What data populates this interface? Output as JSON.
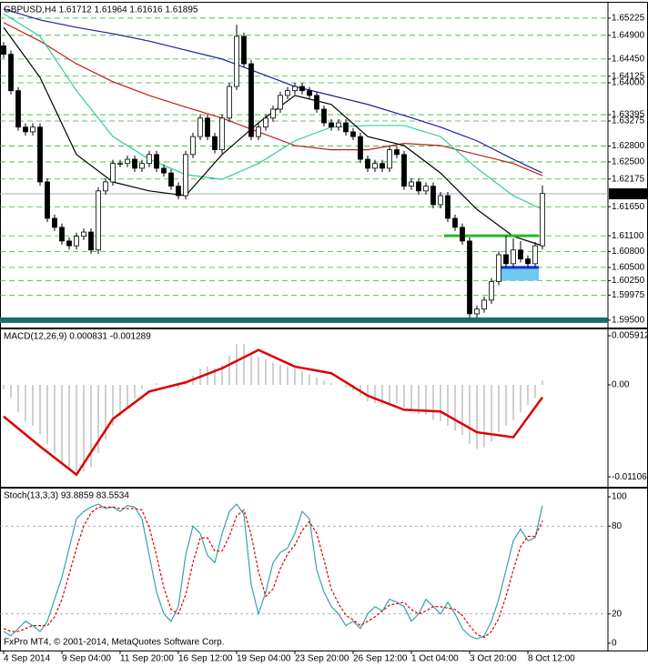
{
  "chart_data": [
    {
      "type": "candlestick",
      "title": "GBPUSD,H4  1.61712 1.61964 1.61616 1.61895",
      "xlim": [
        -0.5,
        83
      ],
      "ylim": [
        1.5936,
        1.655
      ],
      "yticks": [
        1.65225,
        {
          "value": 1.649,
          "label": "1.64900"
        },
        {
          "value": 1.6445,
          "label": "1.64450"
        },
        1.64125,
        {
          "value": 1.64,
          "label": "1.64000"
        },
        1.63395,
        1.63275,
        {
          "value": 1.628,
          "label": "1.62800"
        },
        {
          "value": 1.625,
          "label": "1.62500"
        },
        1.62175,
        {
          "value": 1.6165,
          "label": "1.61650"
        },
        {
          "value": 1.611,
          "label": "1.61100"
        },
        {
          "value": 1.608,
          "label": "1.60800"
        },
        {
          "value": 1.605,
          "label": "1.60500"
        },
        {
          "value": 1.6025,
          "label": "1.60250"
        },
        1.59975,
        {
          "value": 1.595,
          "label": "1.59500"
        }
      ],
      "grid": true,
      "grid_color": "#2db82d",
      "last_price": 1.61895,
      "candle_color": "#000000",
      "ohlc": [
        [
          1.647,
          1.6477,
          1.6447,
          1.6454
        ],
        [
          1.6454,
          1.6461,
          1.6378,
          1.6385
        ],
        [
          1.6385,
          1.6392,
          1.6309,
          1.6316
        ],
        [
          1.6316,
          1.6323,
          1.63,
          1.6307
        ],
        [
          1.6307,
          1.6323,
          1.63,
          1.6316
        ],
        [
          1.6316,
          1.6323,
          1.6205,
          1.6212
        ],
        [
          1.6212,
          1.6219,
          1.6136,
          1.6143
        ],
        [
          1.6143,
          1.615,
          1.6119,
          1.6126
        ],
        [
          1.6126,
          1.6133,
          1.6093,
          1.61
        ],
        [
          1.61,
          1.6107,
          1.6084,
          1.6091
        ],
        [
          1.6091,
          1.6116,
          1.6084,
          1.6109
        ],
        [
          1.6109,
          1.6124,
          1.6102,
          1.6117
        ],
        [
          1.6117,
          1.6124,
          1.6076,
          1.6083
        ],
        [
          1.6083,
          1.6202,
          1.6076,
          1.6195
        ],
        [
          1.6195,
          1.6219,
          1.6188,
          1.6212
        ],
        [
          1.6212,
          1.6254,
          1.6205,
          1.6247
        ],
        [
          1.6247,
          1.6254,
          1.624,
          1.6247
        ],
        [
          1.6247,
          1.6262,
          1.624,
          1.6255
        ],
        [
          1.6255,
          1.6262,
          1.6231,
          1.6238
        ],
        [
          1.6238,
          1.6254,
          1.6231,
          1.6247
        ],
        [
          1.6247,
          1.6271,
          1.624,
          1.6264
        ],
        [
          1.6264,
          1.6271,
          1.6231,
          1.6238
        ],
        [
          1.6238,
          1.6245,
          1.6222,
          1.6229
        ],
        [
          1.6229,
          1.6236,
          1.6197,
          1.6204
        ],
        [
          1.6204,
          1.6211,
          1.6179,
          1.6186
        ],
        [
          1.6186,
          1.6271,
          1.6179,
          1.6264
        ],
        [
          1.6264,
          1.6305,
          1.6257,
          1.6298
        ],
        [
          1.6298,
          1.634,
          1.6291,
          1.6333
        ],
        [
          1.6333,
          1.634,
          1.6291,
          1.6298
        ],
        [
          1.6298,
          1.6305,
          1.6266,
          1.6273
        ],
        [
          1.6273,
          1.634,
          1.6266,
          1.6333
        ],
        [
          1.6333,
          1.64,
          1.6326,
          1.6393
        ],
        [
          1.6393,
          1.651,
          1.6386,
          1.6488
        ],
        [
          1.6488,
          1.6495,
          1.6429,
          1.6436
        ],
        [
          1.6436,
          1.6443,
          1.6291,
          1.6298
        ],
        [
          1.6298,
          1.6323,
          1.6291,
          1.6316
        ],
        [
          1.6316,
          1.634,
          1.6309,
          1.6333
        ],
        [
          1.6333,
          1.6357,
          1.6326,
          1.635
        ],
        [
          1.635,
          1.6383,
          1.6343,
          1.6376
        ],
        [
          1.6376,
          1.6392,
          1.6369,
          1.6385
        ],
        [
          1.6385,
          1.64,
          1.6378,
          1.6393
        ],
        [
          1.6393,
          1.64,
          1.6378,
          1.6385
        ],
        [
          1.6385,
          1.6392,
          1.6369,
          1.6376
        ],
        [
          1.6376,
          1.6383,
          1.6343,
          1.635
        ],
        [
          1.635,
          1.6357,
          1.6317,
          1.6324
        ],
        [
          1.6324,
          1.6331,
          1.6309,
          1.6316
        ],
        [
          1.6316,
          1.6331,
          1.6309,
          1.6324
        ],
        [
          1.6324,
          1.6331,
          1.63,
          1.6307
        ],
        [
          1.6307,
          1.6314,
          1.6291,
          1.6298
        ],
        [
          1.6298,
          1.6305,
          1.6248,
          1.6255
        ],
        [
          1.6255,
          1.6262,
          1.6231,
          1.6238
        ],
        [
          1.6238,
          1.6254,
          1.6231,
          1.6247
        ],
        [
          1.6247,
          1.6254,
          1.6231,
          1.6238
        ],
        [
          1.6238,
          1.628,
          1.6231,
          1.6273
        ],
        [
          1.6273,
          1.628,
          1.6257,
          1.6264
        ],
        [
          1.6264,
          1.6271,
          1.6197,
          1.6204
        ],
        [
          1.6204,
          1.6219,
          1.6197,
          1.6212
        ],
        [
          1.6212,
          1.6219,
          1.6188,
          1.6195
        ],
        [
          1.6195,
          1.6211,
          1.6188,
          1.6204
        ],
        [
          1.6204,
          1.6211,
          1.6162,
          1.6169
        ],
        [
          1.6169,
          1.6193,
          1.6162,
          1.6186
        ],
        [
          1.6186,
          1.6193,
          1.6136,
          1.6143
        ],
        [
          1.6143,
          1.615,
          1.6119,
          1.6126
        ],
        [
          1.6126,
          1.6133,
          1.6093,
          1.61
        ],
        [
          1.61,
          1.6107,
          1.5955,
          1.5962
        ],
        [
          1.5962,
          1.5978,
          1.5955,
          1.5971
        ],
        [
          1.5971,
          1.5995,
          1.5964,
          1.5988
        ],
        [
          1.5988,
          1.603,
          1.5981,
          1.6023
        ],
        [
          1.6023,
          1.6081,
          1.6016,
          1.6074
        ],
        [
          1.6074,
          1.611,
          1.605,
          1.6057
        ],
        [
          1.6057,
          1.6105,
          1.605,
          1.6083
        ],
        [
          1.6083,
          1.61,
          1.6059,
          1.6066
        ],
        [
          1.6066,
          1.6073,
          1.605,
          1.6057
        ],
        [
          1.6057,
          1.6098,
          1.605,
          1.6091
        ],
        [
          1.6091,
          1.6205,
          1.6084,
          1.619
        ]
      ],
      "ma_x": [
        0,
        5,
        10,
        15,
        20,
        25,
        30,
        35,
        40,
        45,
        50,
        55,
        60,
        65,
        70,
        74
      ],
      "lines": [
        {
          "color": "#1f1f99",
          "values": [
            1.654,
            1.6519,
            1.6505,
            1.6493,
            1.6479,
            1.6462,
            1.6445,
            1.6419,
            1.6393,
            1.6376,
            1.6359,
            1.6338,
            1.6316,
            1.629,
            1.6255,
            1.6229
          ]
        },
        {
          "color": "#c0201a",
          "values": [
            1.6514,
            1.6479,
            1.6436,
            1.6402,
            1.6376,
            1.6354,
            1.6333,
            1.6307,
            1.6281,
            1.6273,
            1.6273,
            1.6285,
            1.6281,
            1.6264,
            1.6247,
            1.6224
          ]
        },
        {
          "color": "#33cc99",
          "values": [
            1.6531,
            1.6488,
            1.6385,
            1.6298,
            1.6255,
            1.6226,
            1.6217,
            1.6247,
            1.629,
            1.6316,
            1.6319,
            1.6319,
            1.6298,
            1.6238,
            1.6186,
            1.616
          ]
        },
        {
          "color": "#000000",
          "values": [
            1.6505,
            1.641,
            1.6264,
            1.6212,
            1.6195,
            1.6186,
            1.6264,
            1.6324,
            1.6376,
            1.6359,
            1.6298,
            1.6281,
            1.6229,
            1.616,
            1.6109,
            1.6091
          ]
        }
      ],
      "support_line": {
        "value": 1.611,
        "x": [
          60.5,
          73.5
        ],
        "color": "#22bb22"
      },
      "zone": {
        "top": 1.605,
        "bottom": 1.6025,
        "x": [
          68,
          73.5
        ],
        "color": "#6fc8f0",
        "edge_color": "#1133cc"
      },
      "bottom_line": {
        "value": 1.595,
        "color": "#1a6b6b"
      }
    },
    {
      "type": "macd",
      "title": "MACD(12,26,9) 0.000831 -0.001289",
      "xlim": [
        -0.5,
        83
      ],
      "ylim": [
        -0.01226,
        0.00657
      ],
      "yticks": [
        0.005912,
        {
          "value": 0,
          "label": "0.00"
        },
        -0.011069
      ],
      "histogram_color": "#a0a0a0",
      "histogram": [
        -0.0005,
        -0.0016,
        -0.0033,
        -0.0044,
        -0.0049,
        -0.006,
        -0.0071,
        -0.0082,
        -0.0093,
        -0.0101,
        -0.0104,
        -0.0104,
        -0.0099,
        -0.0082,
        -0.0066,
        -0.0049,
        -0.0038,
        -0.0027,
        -0.0016,
        -0.0005,
        0,
        0.0002,
        0,
        -0.0002,
        -0.0004,
        0.0002,
        0.0011,
        0.002,
        0.0022,
        0.002,
        0.0024,
        0.0035,
        0.0049,
        0.0049,
        0.0038,
        0.0033,
        0.0031,
        0.0027,
        0.0024,
        0.0022,
        0.002,
        0.0016,
        0.0013,
        0.0009,
        0.0005,
        0.0002,
        0,
        -0.0003,
        -0.0007,
        -0.0013,
        -0.002,
        -0.0022,
        -0.0024,
        -0.0022,
        -0.0022,
        -0.0027,
        -0.0031,
        -0.0035,
        -0.0036,
        -0.0042,
        -0.0044,
        -0.0049,
        -0.0055,
        -0.006,
        -0.0071,
        -0.0077,
        -0.0075,
        -0.0068,
        -0.0057,
        -0.0049,
        -0.0042,
        -0.0033,
        -0.0024,
        -0.0016,
        0.0005
      ],
      "signal_x": [
        0,
        5,
        10,
        15,
        20,
        25,
        30,
        35,
        40,
        45,
        50,
        55,
        60,
        65,
        70,
        74
      ],
      "signal": {
        "color": "#dd0000",
        "values": [
          -0.0038,
          -0.0074,
          -0.0108,
          -0.0041,
          -0.0008,
          0.0003,
          0.002,
          0.0042,
          0.0022,
          0.0014,
          -0.0013,
          -0.003,
          -0.0032,
          -0.0057,
          -0.0063,
          -0.0015
        ]
      }
    },
    {
      "type": "stochastic",
      "title": "Stoch(13,3,3) 93.8859 83.5534",
      "xlim": [
        -0.5,
        83
      ],
      "ylim": [
        -5,
        105
      ],
      "yticks": [
        100,
        80,
        20,
        0
      ],
      "levels": [
        80,
        20
      ],
      "footer": "FxPro MT4, © 2001-2014, MetaQuotes Software Corp.",
      "xticks": [
        {
          "value": 0,
          "label": "4 Sep 2014"
        },
        {
          "value": 8,
          "label": "9 Sep 04:00"
        },
        {
          "value": 16,
          "label": "11 Sep 20:00"
        },
        {
          "value": 24,
          "label": "16 Sep 12:00"
        },
        {
          "value": 32,
          "label": "19 Sep 04:00"
        },
        {
          "value": 40,
          "label": "23 Sep 20:00"
        },
        {
          "value": 48,
          "label": "26 Sep 12:00"
        },
        {
          "value": 56,
          "label": "1 Oct 04:00"
        },
        {
          "value": 64,
          "label": "3 Oct 20:00"
        },
        {
          "value": 72,
          "label": "8 Oct 12:00"
        }
      ],
      "series": [
        {
          "color": "#3aa0b0",
          "dash": false,
          "values": [
            8,
            5,
            10,
            15,
            12,
            8,
            15,
            30,
            45,
            65,
            85,
            90,
            93,
            95,
            92,
            93,
            90,
            94,
            93,
            85,
            60,
            35,
            20,
            15,
            25,
            60,
            80,
            75,
            60,
            55,
            75,
            90,
            95,
            88,
            40,
            20,
            35,
            55,
            62,
            65,
            75,
            90,
            85,
            50,
            35,
            25,
            20,
            12,
            15,
            10,
            20,
            25,
            22,
            30,
            28,
            25,
            15,
            20,
            30,
            25,
            20,
            28,
            20,
            10,
            5,
            3,
            5,
            15,
            30,
            50,
            70,
            78,
            70,
            72,
            93.8859
          ]
        },
        {
          "color": "#dd0000",
          "dash": true,
          "values": [
            10,
            8,
            8,
            10,
            12,
            12,
            12,
            18,
            30,
            47,
            65,
            80,
            89,
            93,
            93,
            93,
            92,
            92,
            92,
            91,
            79,
            60,
            38,
            23,
            20,
            33,
            55,
            72,
            72,
            63,
            63,
            73,
            87,
            91,
            74,
            49,
            32,
            37,
            51,
            61,
            67,
            77,
            83,
            75,
            57,
            37,
            27,
            19,
            16,
            12,
            15,
            18,
            22,
            26,
            27,
            28,
            23,
            20,
            22,
            25,
            25,
            24,
            23,
            19,
            12,
            6,
            4,
            8,
            17,
            32,
            50,
            66,
            73,
            73,
            83.5534
          ]
        }
      ]
    }
  ]
}
